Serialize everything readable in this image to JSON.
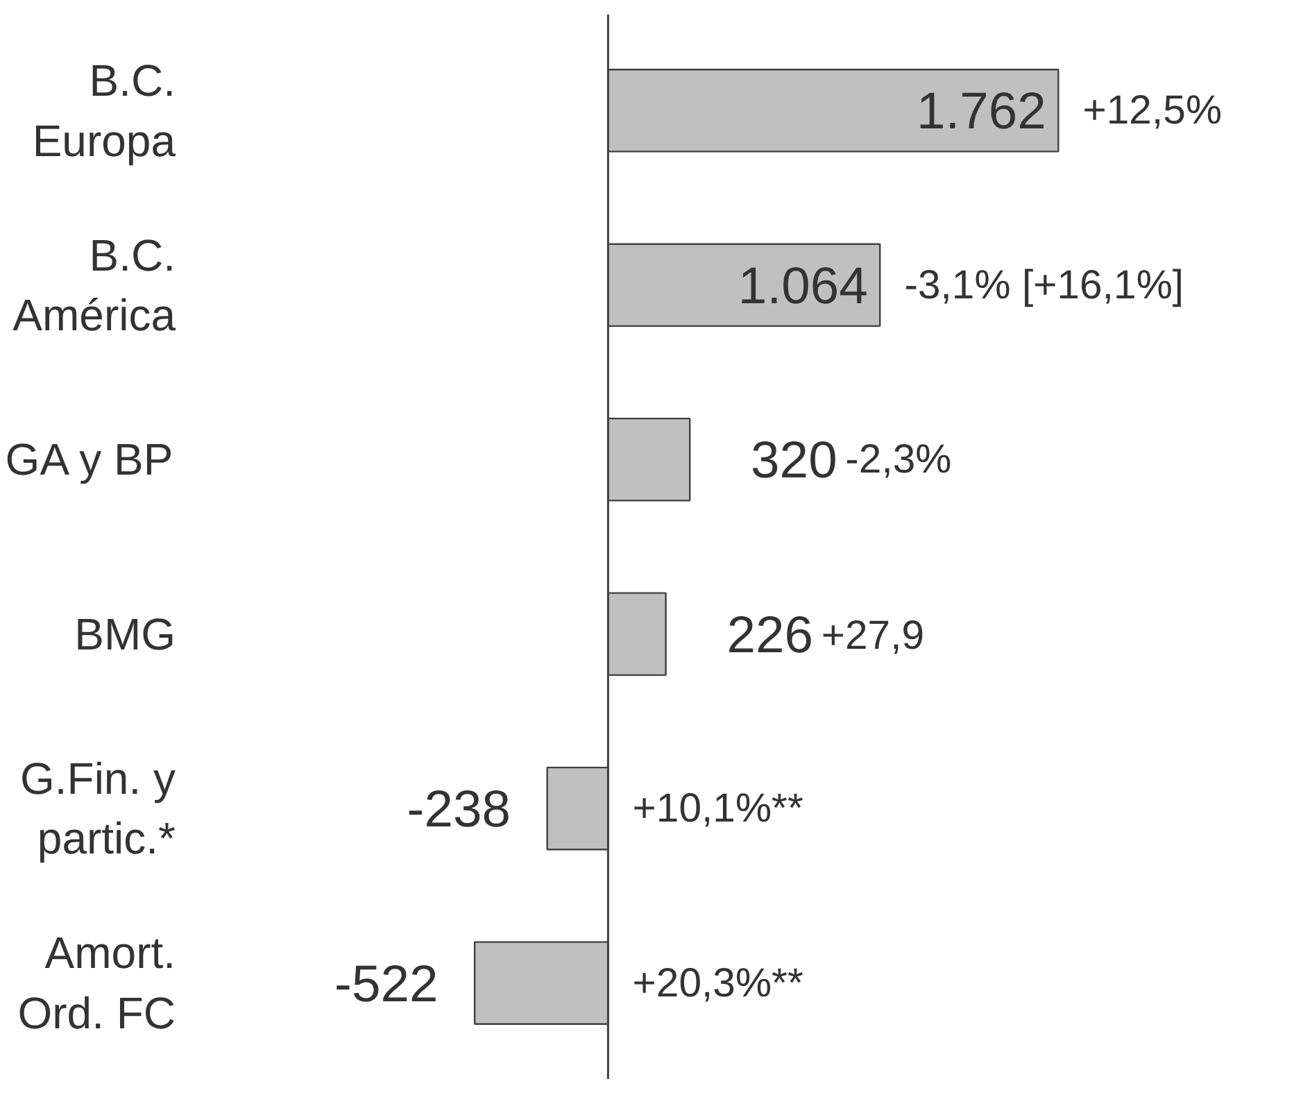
{
  "chart_data": {
    "type": "bar",
    "orientation": "horizontal",
    "categories": [
      "B.C.\nEuropa",
      "B.C.\nAmérica",
      "GA y BP",
      "BMG",
      "G.Fin. y\npartic.*",
      "Amort.\nOrd. FC"
    ],
    "values": [
      1762,
      1064,
      320,
      226,
      -238,
      -522
    ],
    "value_labels": [
      "1.762",
      "1.064",
      "320",
      "226",
      "-238",
      "-522"
    ],
    "color": "#c0c0c0",
    "annotations": [
      "+12,5%",
      "-3,1% [+16,1%]",
      "-2,3%",
      "+27,9",
      "+10,1%**",
      "+20,3%**"
    ],
    "grid": false
  }
}
